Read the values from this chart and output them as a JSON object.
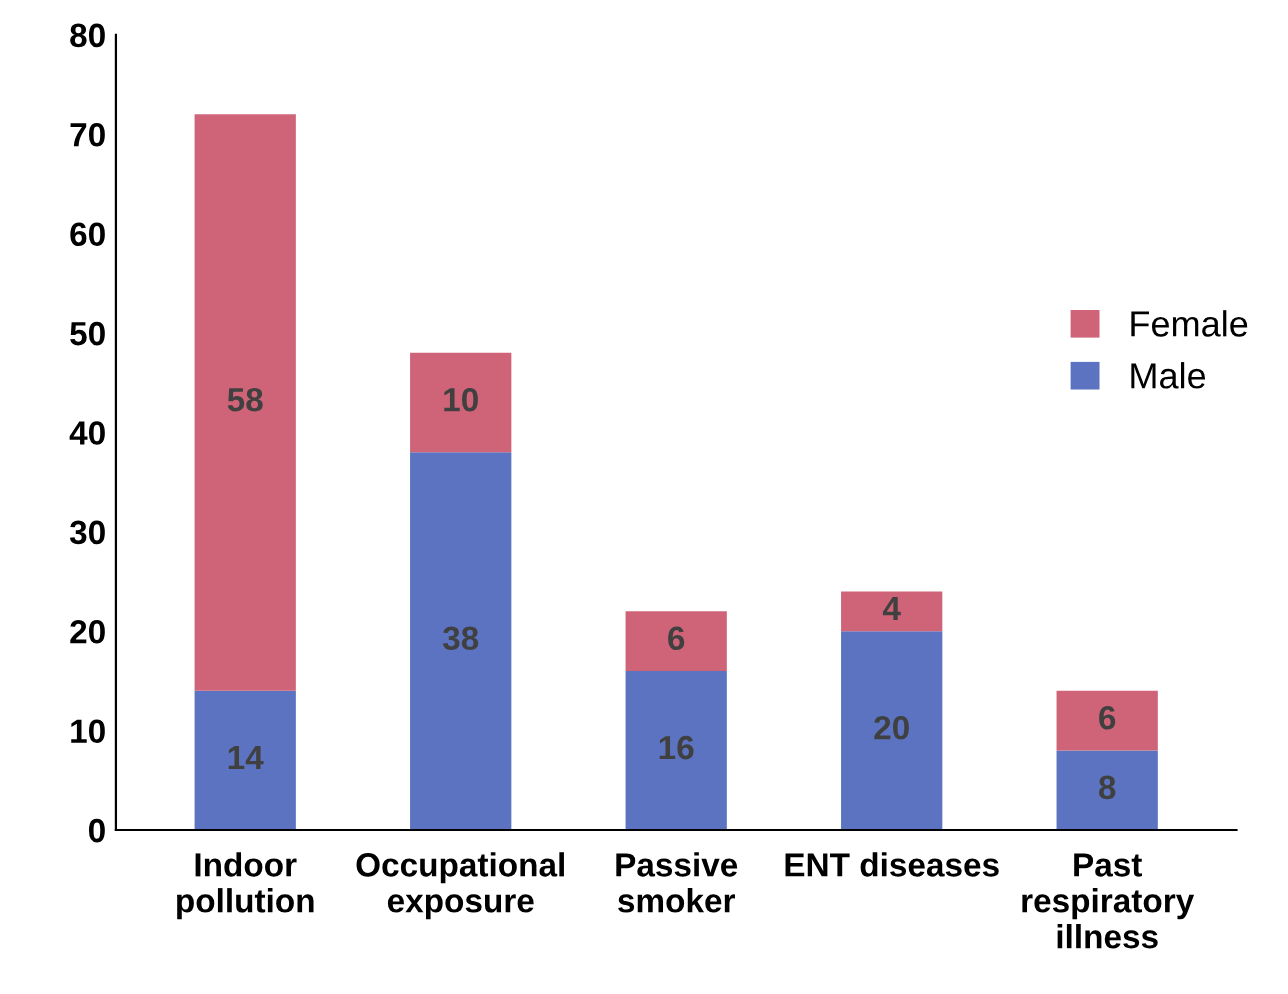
{
  "chart_data": {
    "type": "bar",
    "stacked": true,
    "categories": [
      "Indoor\npollution",
      "Occupational\nexposure",
      "Passive\nsmoker",
      "ENT diseases",
      "Past\nrespiratory\nillness"
    ],
    "series": [
      {
        "name": "Male",
        "color": "#5b73c0",
        "values": [
          14,
          38,
          16,
          20,
          8
        ]
      },
      {
        "name": "Female",
        "color": "#cf6479",
        "values": [
          58,
          10,
          6,
          4,
          6
        ]
      }
    ],
    "ylim": [
      0,
      80
    ],
    "yticks": [
      0,
      10,
      20,
      30,
      40,
      50,
      60,
      70,
      80
    ],
    "grid": false,
    "legend": "right",
    "data_labels": true
  }
}
